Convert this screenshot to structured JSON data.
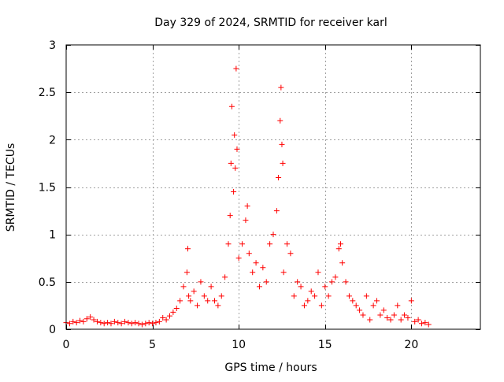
{
  "chart_data": {
    "type": "scatter",
    "title": "Day 329 of 2024, SRMTID for receiver karl",
    "xlabel": "GPS time / hours",
    "ylabel": "SRMTID / TECUs",
    "xlim": [
      0,
      24
    ],
    "ylim": [
      0,
      3
    ],
    "x_ticks": [
      0,
      5,
      10,
      15,
      20
    ],
    "x_tick_labels": [
      "0",
      "5",
      "10",
      "15",
      "20"
    ],
    "y_ticks": [
      0,
      0.5,
      1,
      1.5,
      2,
      2.5,
      3
    ],
    "y_tick_labels": [
      "0",
      "0.5",
      "1",
      "1.5",
      "2",
      "2.5",
      "3"
    ],
    "grid": true,
    "marker": "+",
    "series": [
      {
        "name": "SRMTID",
        "color": "#ff0000",
        "x": [
          0.0,
          0.2,
          0.4,
          0.6,
          0.8,
          1.0,
          1.2,
          1.4,
          1.6,
          1.8,
          2.0,
          2.2,
          2.4,
          2.6,
          2.8,
          3.0,
          3.2,
          3.4,
          3.6,
          3.8,
          4.0,
          4.2,
          4.4,
          4.6,
          4.8,
          5.0,
          5.2,
          5.4,
          5.6,
          5.8,
          6.0,
          6.2,
          6.4,
          6.6,
          6.8,
          7.0,
          7.05,
          7.1,
          7.2,
          7.4,
          7.6,
          7.8,
          8.0,
          8.2,
          8.4,
          8.6,
          8.8,
          9.0,
          9.2,
          9.4,
          9.5,
          9.55,
          9.6,
          9.7,
          9.75,
          9.8,
          9.85,
          9.9,
          10.0,
          10.2,
          10.4,
          10.5,
          10.6,
          10.8,
          11.0,
          11.2,
          11.4,
          11.6,
          11.8,
          12.0,
          12.2,
          12.3,
          12.4,
          12.45,
          12.5,
          12.55,
          12.6,
          12.8,
          13.0,
          13.2,
          13.4,
          13.6,
          13.8,
          14.0,
          14.2,
          14.4,
          14.6,
          14.8,
          15.0,
          15.2,
          15.4,
          15.6,
          15.8,
          15.9,
          16.0,
          16.2,
          16.4,
          16.6,
          16.8,
          17.0,
          17.2,
          17.4,
          17.6,
          17.8,
          18.0,
          18.2,
          18.4,
          18.6,
          18.8,
          19.0,
          19.2,
          19.4,
          19.6,
          19.8,
          20.0,
          20.2,
          20.4,
          20.6,
          20.8,
          21.0
        ],
        "y": [
          0.07,
          0.06,
          0.08,
          0.07,
          0.09,
          0.08,
          0.11,
          0.13,
          0.1,
          0.08,
          0.07,
          0.06,
          0.07,
          0.06,
          0.08,
          0.07,
          0.06,
          0.08,
          0.07,
          0.06,
          0.07,
          0.06,
          0.05,
          0.06,
          0.07,
          0.06,
          0.07,
          0.08,
          0.12,
          0.1,
          0.14,
          0.18,
          0.22,
          0.3,
          0.45,
          0.6,
          0.85,
          0.35,
          0.3,
          0.4,
          0.25,
          0.5,
          0.35,
          0.3,
          0.45,
          0.3,
          0.25,
          0.35,
          0.55,
          0.9,
          1.2,
          1.75,
          2.35,
          1.45,
          2.05,
          1.7,
          2.75,
          1.9,
          0.75,
          0.9,
          1.15,
          1.3,
          0.8,
          0.6,
          0.7,
          0.45,
          0.65,
          0.5,
          0.9,
          1.0,
          1.25,
          1.6,
          2.2,
          2.55,
          1.95,
          1.75,
          0.6,
          0.9,
          0.8,
          0.35,
          0.5,
          0.45,
          0.25,
          0.3,
          0.4,
          0.35,
          0.6,
          0.25,
          0.45,
          0.35,
          0.5,
          0.55,
          0.85,
          0.9,
          0.7,
          0.5,
          0.35,
          0.3,
          0.25,
          0.2,
          0.15,
          0.35,
          0.1,
          0.25,
          0.3,
          0.15,
          0.2,
          0.12,
          0.1,
          0.15,
          0.25,
          0.1,
          0.15,
          0.12,
          0.3,
          0.08,
          0.1,
          0.06,
          0.07,
          0.05
        ]
      }
    ]
  }
}
